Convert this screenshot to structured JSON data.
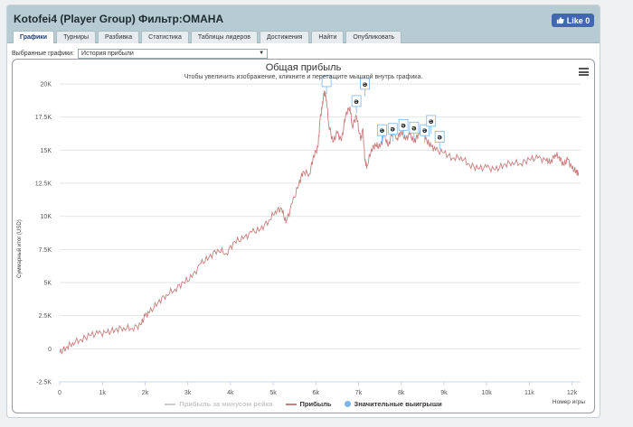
{
  "header": {
    "title": "Kotofei4 (Player Group) Фильтр:OMAHA",
    "like_label": "Like 0"
  },
  "tabs": [
    "Графики",
    "Турниры",
    "Разбивка",
    "Статистика",
    "Таблицы лидеров",
    "Достижения",
    "Найти",
    "Опубликовать"
  ],
  "active_tab": 0,
  "graph_select": {
    "label": "Выбранные графики:",
    "value": "История прибыли"
  },
  "chart_data": {
    "type": "line",
    "title": "Общая прибыль",
    "subtitle": "Чтобы увеличить изображение, кликните и перетащите мышкой внутрь графика.",
    "ylabel": "Суммарный итог (USD)",
    "xlabel": "Номер игры",
    "ylim": [
      -2500,
      20000
    ],
    "xlim": [
      0,
      12200
    ],
    "y_ticks": [
      -2500,
      0,
      2500,
      5000,
      7500,
      10000,
      12500,
      15000,
      17500,
      20000
    ],
    "y_tick_labels": [
      "-2.5K",
      "0",
      "2.5K",
      "5K",
      "7.5K",
      "10K",
      "12.5K",
      "15K",
      "17.5K",
      "20K"
    ],
    "x_ticks": [
      0,
      1000,
      2000,
      3000,
      4000,
      5000,
      6000,
      7000,
      8000,
      9000,
      10000,
      11000,
      12000
    ],
    "x_tick_labels": [
      "0",
      "1k",
      "2k",
      "3k",
      "4k",
      "5k",
      "6k",
      "7k",
      "8k",
      "9k",
      "10k",
      "11k",
      "12k"
    ],
    "series": [
      {
        "name": "Прибыль",
        "color": "#c87f7f",
        "x": [
          0,
          150,
          300,
          500,
          700,
          900,
          1100,
          1300,
          1500,
          1700,
          1900,
          2000,
          2100,
          2300,
          2500,
          2700,
          2900,
          3100,
          3300,
          3500,
          3700,
          3900,
          4100,
          4300,
          4500,
          4700,
          4900,
          5050,
          5200,
          5300,
          5450,
          5600,
          5700,
          5850,
          5950,
          6050,
          6100,
          6150,
          6200,
          6250,
          6300,
          6400,
          6500,
          6600,
          6700,
          6800,
          6850,
          6950,
          7050,
          7100,
          7150,
          7200,
          7300,
          7400,
          7500,
          7600,
          7700,
          7800,
          7900,
          8000,
          8100,
          8200,
          8300,
          8400,
          8500,
          8600,
          8700,
          8800,
          9000,
          9200,
          9400,
          9600,
          9800,
          10000,
          10200,
          10400,
          10600,
          10800,
          11000,
          11200,
          11400,
          11500,
          11600,
          11700,
          11800,
          11900,
          12000,
          12100,
          12150
        ],
        "values": [
          -300,
          100,
          450,
          700,
          1000,
          1150,
          1200,
          1450,
          1600,
          1550,
          1800,
          2500,
          2700,
          3500,
          4100,
          4500,
          5000,
          5400,
          6400,
          6900,
          7500,
          7200,
          8100,
          8300,
          8800,
          9000,
          9700,
          10400,
          10600,
          9500,
          11000,
          12400,
          13400,
          13200,
          14600,
          15200,
          17300,
          18300,
          19500,
          18800,
          17000,
          15600,
          16300,
          15700,
          17700,
          18300,
          16800,
          17600,
          15700,
          16600,
          14200,
          13800,
          15100,
          15400,
          15200,
          16100,
          15300,
          16500,
          15900,
          16400,
          15800,
          16200,
          15600,
          16200,
          16900,
          15700,
          15300,
          15000,
          14800,
          14400,
          14500,
          13900,
          13600,
          13700,
          13500,
          13900,
          14100,
          14000,
          14300,
          14400,
          14200,
          14100,
          14700,
          14500,
          13900,
          14300,
          13600,
          13400,
          13300
        ]
      }
    ],
    "legend": [
      "Прибыль за минусом рейка",
      "Прибыль",
      "Значительные выигрыши"
    ],
    "legend_colors": [
      "#cccccc",
      "#c87f7f",
      "#7cb5ec"
    ],
    "flags": [
      {
        "x": 6250,
        "y": 19800,
        "label": ""
      },
      {
        "x": 6950,
        "y": 18300,
        "label": "ə"
      },
      {
        "x": 7150,
        "y": 19600,
        "label": "ə"
      },
      {
        "x": 7550,
        "y": 16100,
        "label": "ə"
      },
      {
        "x": 7800,
        "y": 16200,
        "label": "ə"
      },
      {
        "x": 8050,
        "y": 16500,
        "label": "ə"
      },
      {
        "x": 8300,
        "y": 16300,
        "label": "ə"
      },
      {
        "x": 8550,
        "y": 16100,
        "label": "ə"
      },
      {
        "x": 8700,
        "y": 16800,
        "label": "ə"
      },
      {
        "x": 8900,
        "y": 15600,
        "label": "ə"
      }
    ]
  }
}
